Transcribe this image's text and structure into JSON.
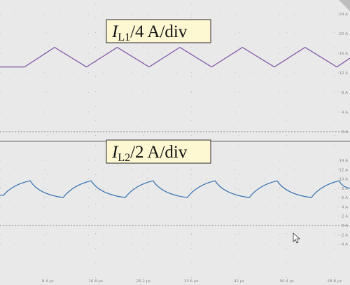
{
  "chart_data": [
    {
      "type": "line",
      "title": "I",
      "title_sub": "L1",
      "title_rest": "/4 A/div",
      "y_tick_labels": [
        "0 A",
        "4 A",
        "8 A",
        "12 A",
        "16 A",
        "20 A",
        "24 A"
      ],
      "ylim": [
        0,
        28
      ],
      "grid": true,
      "color": "#7a4fa3",
      "x": [
        0,
        4.3,
        9.6,
        15.2,
        20.6,
        26.2,
        31.6,
        37.2,
        42.6,
        48.2,
        53.6,
        59.2,
        61.5
      ],
      "values": [
        13.2,
        13.2,
        17.2,
        13.2,
        17.2,
        13.2,
        17.2,
        13.2,
        17.2,
        13.2,
        17.2,
        13.2,
        15.0
      ]
    },
    {
      "type": "line",
      "title": "I",
      "title_sub": "L2",
      "title_rest": "/2 A/div",
      "y_tick_labels": [
        "-4 A",
        "-2 A",
        "0 A",
        "2 A",
        "4 A",
        "6 A",
        "8 A",
        "10 A",
        "12 A",
        "14 A"
      ],
      "ylim": [
        -4,
        14
      ],
      "grid": true,
      "color": "#2f6db0",
      "x": [
        0,
        0.6,
        5.3,
        11.1,
        16.0,
        22.0,
        26.9,
        32.9,
        37.8,
        43.8,
        48.7,
        54.7,
        59.6,
        61.5
      ],
      "values": [
        6.5,
        6.5,
        9.6,
        6.0,
        9.6,
        6.0,
        9.6,
        6.0,
        9.6,
        6.0,
        9.6,
        6.0,
        9.6,
        8.0
      ]
    }
  ],
  "x_tick_labels": [
    "8.4 µs",
    "16.8 µs",
    "25.2 µs",
    "33.6 µs",
    "42 µs",
    "50.4 µs",
    "58.8 µs"
  ],
  "x_ticks": [
    8.4,
    16.8,
    25.2,
    33.6,
    42,
    50.4,
    58.8
  ],
  "xlim": [
    0,
    61.5
  ]
}
